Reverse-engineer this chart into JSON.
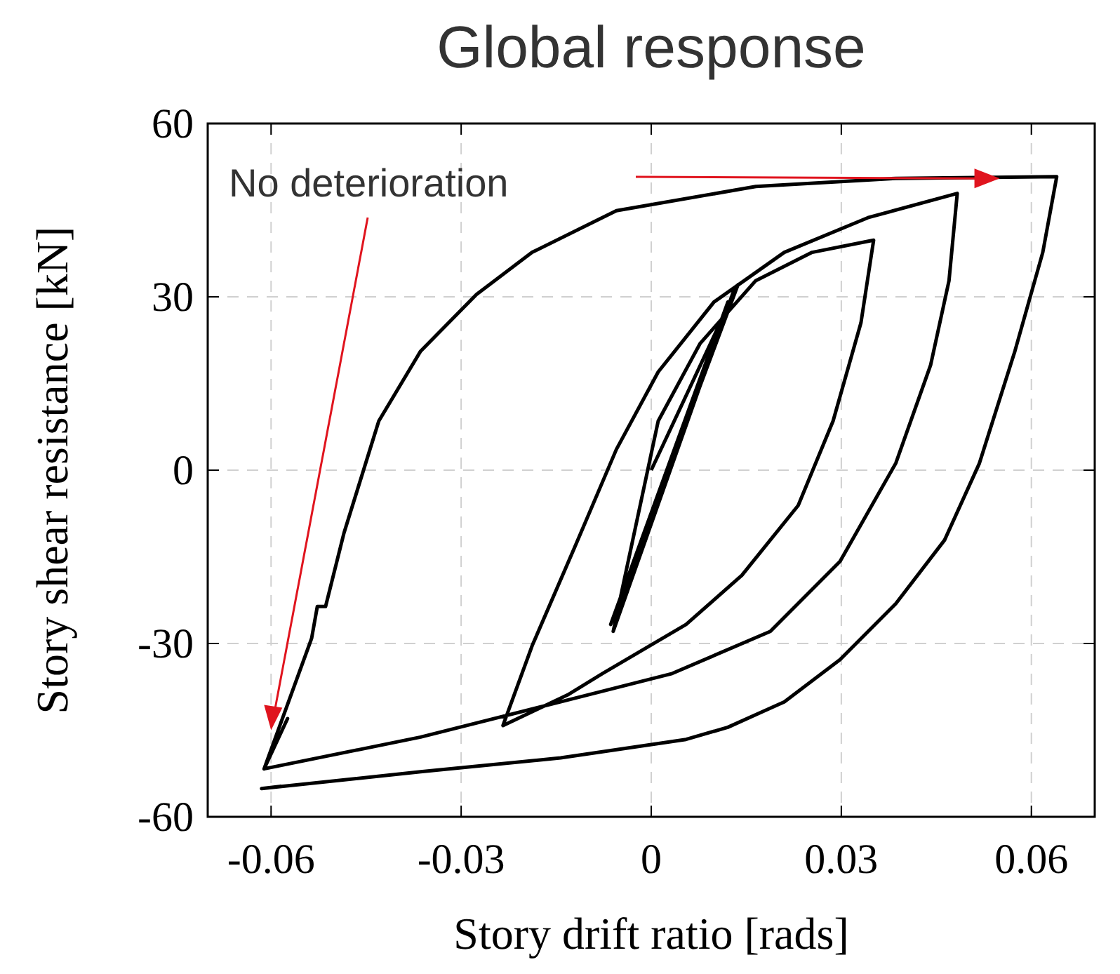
{
  "chart_data": {
    "type": "line",
    "title": "Global response",
    "xlabel": "Story drift ratio [rads]",
    "ylabel": "Story shear resistance [kN]",
    "annotations": [
      "No deterioration"
    ],
    "xlim": [
      -0.07,
      0.07
    ],
    "ylim": [
      -60,
      60
    ],
    "xticks": [
      -0.06,
      -0.03,
      0,
      0.03,
      0.06
    ],
    "yticks": [
      -60,
      -30,
      0,
      30,
      60
    ],
    "grid": true,
    "line_style": "solid",
    "marker": "none",
    "series": [
      {
        "color": "#000000",
        "x": [
          0,
          0.0137,
          -0.0064,
          0.0121,
          -0.0055,
          0.0132,
          -0.006,
          0.0011,
          0.0077,
          0.0165,
          0.0254,
          0.0351,
          0.0331,
          0.0287,
          0.0232,
          0.0143,
          0.0055,
          -0.0077,
          -0.0132,
          -0.0234,
          -0.0188,
          -0.0121,
          -0.0055,
          0.0011,
          0.0099,
          0.021,
          0.0342,
          0.0483,
          0.047,
          0.0441,
          0.0386,
          0.0298,
          0.0188,
          0.0033,
          -0.0143,
          -0.0364,
          -0.0611,
          -0.0574,
          -0.0611,
          -0.0536,
          -0.0527,
          -0.0514,
          -0.0485,
          -0.043,
          -0.0364,
          -0.0276,
          -0.0188,
          -0.0055,
          0.0165,
          0.0386,
          0.064,
          0.0618,
          0.0574,
          0.0518,
          0.0463,
          0.0386,
          0.0298,
          0.021,
          0.0121,
          0.0055,
          -0.0143,
          -0.0364,
          -0.0615,
          -0.0584
        ],
        "values": [
          0,
          32.1,
          -26.7,
          29.1,
          -25.5,
          31.6,
          -27.9,
          8.5,
          21.9,
          32.8,
          37.7,
          39.8,
          25.5,
          8.5,
          -6.1,
          -18.2,
          -26.7,
          -35.2,
          -38.9,
          -44.2,
          -30.4,
          -13.4,
          3.6,
          17,
          29.1,
          37.7,
          43.7,
          47.9,
          32.8,
          18.2,
          1.2,
          -15.8,
          -27.9,
          -35.2,
          -40.1,
          -46.2,
          -51.7,
          -43,
          -51.7,
          -29.1,
          -23.6,
          -23.6,
          -10.9,
          8.5,
          20.6,
          30.4,
          37.7,
          44.9,
          49.1,
          50.5,
          50.8,
          37.7,
          20.6,
          1.2,
          -12.1,
          -23.1,
          -32.8,
          -40.1,
          -44.5,
          -46.6,
          -49.8,
          -52.2,
          -55.1,
          -54.7
        ]
      }
    ]
  }
}
